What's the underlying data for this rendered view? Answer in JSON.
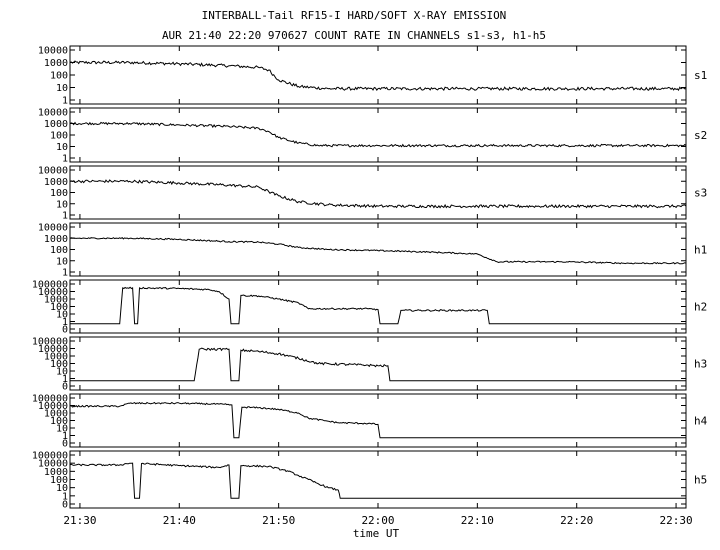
{
  "chart_data": {
    "type": "line",
    "title": "INTERBALL-Tail RF15-I HARD/SOFT X-RAY EMISSION",
    "subtitle": "AUR 21:40 22:20 970627  COUNT RATE IN CHANNELS s1-s3, h1-h5",
    "xlabel": "time UT",
    "x_ticks": [
      "21:30",
      "21:40",
      "21:50",
      "22:00",
      "22:10",
      "22:20",
      "22:30"
    ],
    "x_tick_minutes": [
      1290,
      1300,
      1310,
      1320,
      1330,
      1340,
      1350
    ],
    "xlim": [
      1289,
      1351
    ],
    "y_scale": "log",
    "grid": false,
    "legend": "none",
    "panels": [
      {
        "channel": "s1",
        "y_ticks": [
          "10000",
          "1000",
          "100",
          "10",
          "1"
        ],
        "ylim": [
          1,
          10000
        ],
        "noise": 0.12,
        "points": [
          [
            1289,
            1000
          ],
          [
            1295,
            1000
          ],
          [
            1300,
            780
          ],
          [
            1305,
            550
          ],
          [
            1308,
            400
          ],
          [
            1309,
            250
          ],
          [
            1310,
            40
          ],
          [
            1312,
            12
          ],
          [
            1315,
            8
          ],
          [
            1320,
            8
          ],
          [
            1323,
            8
          ],
          [
            1330,
            8
          ],
          [
            1339,
            8
          ],
          [
            1351,
            8
          ]
        ]
      },
      {
        "channel": "s2",
        "y_ticks": [
          "10000",
          "1000",
          "100",
          "10",
          "1"
        ],
        "ylim": [
          1,
          10000
        ],
        "noise": 0.1,
        "points": [
          [
            1289,
            1000
          ],
          [
            1295,
            1000
          ],
          [
            1300,
            750
          ],
          [
            1305,
            550
          ],
          [
            1308,
            380
          ],
          [
            1309,
            200
          ],
          [
            1310,
            60
          ],
          [
            1312,
            20
          ],
          [
            1314,
            12
          ],
          [
            1320,
            12
          ],
          [
            1323,
            12
          ],
          [
            1330,
            12
          ],
          [
            1339,
            12
          ],
          [
            1351,
            12
          ]
        ]
      },
      {
        "channel": "s3",
        "y_ticks": [
          "10000",
          "1000",
          "100",
          "10",
          "1"
        ],
        "ylim": [
          1,
          10000
        ],
        "noise": 0.12,
        "points": [
          [
            1289,
            1000
          ],
          [
            1295,
            1000
          ],
          [
            1300,
            700
          ],
          [
            1305,
            450
          ],
          [
            1308,
            300
          ],
          [
            1309,
            120
          ],
          [
            1310,
            50
          ],
          [
            1312,
            15
          ],
          [
            1315,
            8
          ],
          [
            1320,
            6
          ],
          [
            1323,
            6
          ],
          [
            1330,
            6
          ],
          [
            1339,
            6
          ],
          [
            1351,
            6
          ]
        ]
      },
      {
        "channel": "h1",
        "y_ticks": [
          "10000",
          "1000",
          "100",
          "10",
          "1"
        ],
        "ylim": [
          1,
          10000
        ],
        "noise": 0.06,
        "points": [
          [
            1289,
            1000
          ],
          [
            1295,
            1000
          ],
          [
            1300,
            800
          ],
          [
            1305,
            500
          ],
          [
            1308,
            450
          ],
          [
            1310,
            300
          ],
          [
            1312,
            150
          ],
          [
            1315,
            100
          ],
          [
            1320,
            80
          ],
          [
            1325,
            60
          ],
          [
            1330,
            40
          ],
          [
            1332,
            8
          ],
          [
            1339,
            8
          ],
          [
            1345,
            6
          ],
          [
            1351,
            6
          ]
        ]
      },
      {
        "channel": "h2",
        "y_ticks": [
          "100000",
          "10000",
          "1000",
          "100",
          "10",
          "1",
          "0"
        ],
        "ylim": [
          0,
          100000
        ],
        "noise": 0.1,
        "points": [
          [
            1289,
            0.5
          ],
          [
            1294,
            0.5
          ],
          [
            1294.3,
            30000
          ],
          [
            1295.3,
            30000
          ],
          [
            1295.5,
            0.5
          ],
          [
            1295.8,
            0.5
          ],
          [
            1296,
            30000
          ],
          [
            1300,
            25000
          ],
          [
            1303,
            18000
          ],
          [
            1304,
            10000
          ],
          [
            1305,
            1000
          ],
          [
            1305.2,
            0.5
          ],
          [
            1306,
            0.5
          ],
          [
            1306.2,
            3000
          ],
          [
            1308,
            2500
          ],
          [
            1310,
            1000
          ],
          [
            1312,
            300
          ],
          [
            1313,
            50
          ],
          [
            1316,
            50
          ],
          [
            1319,
            50
          ],
          [
            1320,
            40
          ],
          [
            1320.2,
            0.5
          ],
          [
            1322,
            0.5
          ],
          [
            1322.3,
            30
          ],
          [
            1331,
            30
          ],
          [
            1331.2,
            0.5
          ],
          [
            1351,
            0.5
          ]
        ]
      },
      {
        "channel": "h3",
        "y_ticks": [
          "100000",
          "10000",
          "1000",
          "100",
          "10",
          "1",
          "0"
        ],
        "ylim": [
          0,
          100000
        ],
        "noise": 0.15,
        "points": [
          [
            1289,
            0.5
          ],
          [
            1301.5,
            0.5
          ],
          [
            1302,
            8000
          ],
          [
            1305,
            8000
          ],
          [
            1305.2,
            0.5
          ],
          [
            1306,
            0.5
          ],
          [
            1306.2,
            6000
          ],
          [
            1308,
            4000
          ],
          [
            1310,
            2000
          ],
          [
            1312,
            500
          ],
          [
            1314,
            100
          ],
          [
            1319,
            60
          ],
          [
            1320,
            50
          ],
          [
            1321,
            50
          ],
          [
            1321.2,
            0.5
          ],
          [
            1351,
            0.5
          ]
        ]
      },
      {
        "channel": "h4",
        "y_ticks": [
          "100000",
          "10000",
          "1000",
          "100",
          "10",
          "1",
          "0"
        ],
        "ylim": [
          0,
          100000
        ],
        "noise": 0.1,
        "points": [
          [
            1289,
            8000
          ],
          [
            1294,
            8000
          ],
          [
            1295,
            20000
          ],
          [
            1300,
            20000
          ],
          [
            1304,
            15000
          ],
          [
            1305.3,
            12000
          ],
          [
            1305.5,
            0.5
          ],
          [
            1306,
            0.5
          ],
          [
            1306.3,
            6000
          ],
          [
            1308,
            5000
          ],
          [
            1310,
            3000
          ],
          [
            1312,
            1000
          ],
          [
            1313,
            200
          ],
          [
            1315,
            80
          ],
          [
            1316,
            50
          ],
          [
            1319,
            40
          ],
          [
            1320,
            30
          ],
          [
            1320.2,
            0.5
          ],
          [
            1351,
            0.5
          ]
        ]
      },
      {
        "channel": "h5",
        "y_ticks": [
          "100000",
          "10000",
          "1000",
          "100",
          "10",
          "1",
          "0"
        ],
        "ylim": [
          0,
          100000
        ],
        "noise": 0.1,
        "points": [
          [
            1289,
            6000
          ],
          [
            1294,
            6000
          ],
          [
            1295,
            10000
          ],
          [
            1295.3,
            10000
          ],
          [
            1295.5,
            0.5
          ],
          [
            1296,
            0.5
          ],
          [
            1296.2,
            9000
          ],
          [
            1300,
            5000
          ],
          [
            1304,
            3000
          ],
          [
            1305,
            6000
          ],
          [
            1305.2,
            0.5
          ],
          [
            1306,
            0.5
          ],
          [
            1306.2,
            5000
          ],
          [
            1309,
            4000
          ],
          [
            1311,
            1000
          ],
          [
            1312,
            300
          ],
          [
            1313,
            100
          ],
          [
            1314,
            30
          ],
          [
            1315,
            10
          ],
          [
            1316,
            5
          ],
          [
            1316.2,
            0.5
          ],
          [
            1351,
            0.5
          ]
        ]
      }
    ]
  }
}
